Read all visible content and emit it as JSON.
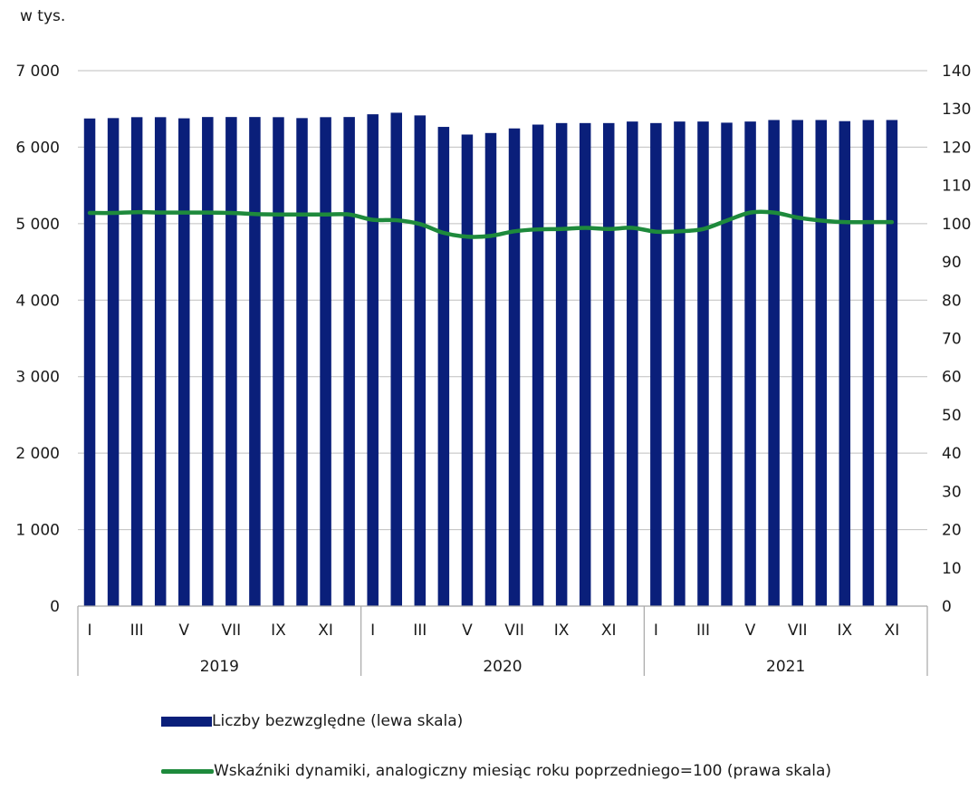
{
  "colors": {
    "bars": "#0a1f7a",
    "line": "#1e8a3c",
    "grid": "#bfbfbf",
    "axis": "#a6a6a6"
  },
  "chart_data": {
    "type": "bar",
    "unit_label": "w tys.",
    "left_axis": {
      "min": 0,
      "max": 7000,
      "ticks": [
        "0",
        "1 000",
        "2 000",
        "3 000",
        "4 000",
        "5 000",
        "6 000",
        "7 000"
      ]
    },
    "right_axis": {
      "min": 0,
      "max": 140,
      "ticks": [
        "0",
        "10",
        "20",
        "30",
        "40",
        "50",
        "60",
        "70",
        "80",
        "90",
        "100",
        "110",
        "120",
        "130",
        "140"
      ]
    },
    "month_labels": [
      "I",
      "III",
      "V",
      "VII",
      "IX",
      "XI"
    ],
    "years": [
      "2019",
      "2020",
      "2021"
    ],
    "grid": true,
    "legend_position": "bottom",
    "series": [
      {
        "name": "Liczby bezwzględne (lewa skala)",
        "type": "bar",
        "axis": "left",
        "values": [
          6375,
          6380,
          6392,
          6392,
          6377,
          6394,
          6394,
          6394,
          6392,
          6380,
          6392,
          6394,
          6430,
          6450,
          6415,
          6265,
          6165,
          6185,
          6245,
          6295,
          6315,
          6315,
          6315,
          6335,
          6315,
          6335,
          6335,
          6320,
          6335,
          6355,
          6355,
          6355,
          6340,
          6355,
          6355
        ]
      },
      {
        "name": "Wskaźniki dynamiki, analogiczny miesiąc roku poprzedniego=100 (prawa skala)",
        "type": "line",
        "axis": "right",
        "values": [
          102.8,
          102.8,
          103.0,
          102.9,
          102.9,
          102.9,
          102.8,
          102.5,
          102.4,
          102.4,
          102.4,
          102.4,
          101.0,
          100.9,
          99.9,
          97.6,
          96.6,
          96.8,
          98.0,
          98.5,
          98.6,
          98.9,
          98.6,
          98.9,
          97.9,
          98.0,
          98.6,
          100.8,
          102.9,
          102.9,
          101.6,
          100.8,
          100.4,
          100.4,
          100.4
        ]
      }
    ]
  }
}
